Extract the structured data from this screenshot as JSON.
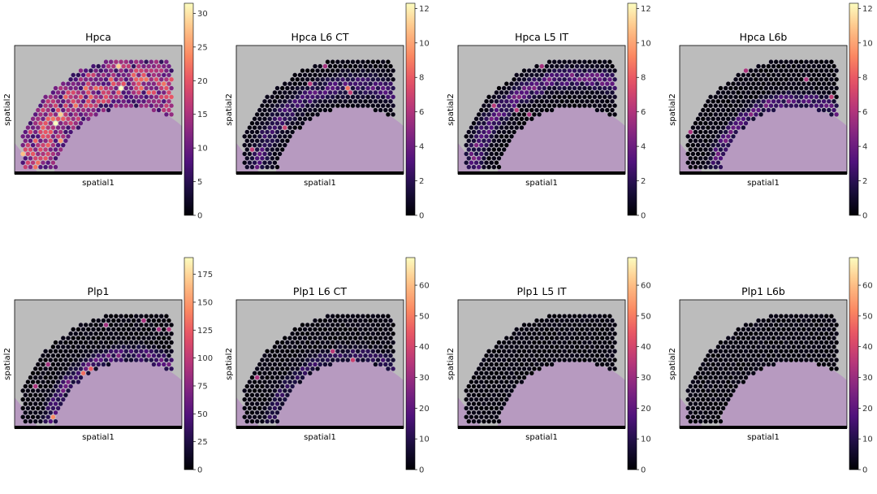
{
  "colormap": "magma",
  "colors": {
    "tissue_background": "#bcbcbc",
    "tissue_stain": "#b79ac0",
    "spot_outline": "#cfc6d8",
    "axis": "#000000"
  },
  "chart_data": [
    {
      "type": "heatmap",
      "title": "Hpca",
      "xlabel": "spatial1",
      "ylabel": "spatial2",
      "colorbar": {
        "vmin": 0,
        "vmax": 31.5,
        "ticks": [
          0,
          5,
          10,
          15,
          20,
          25,
          30
        ]
      },
      "level": 0.55,
      "band": "wide"
    },
    {
      "type": "heatmap",
      "title": "Hpca L6 CT",
      "xlabel": "spatial1",
      "ylabel": "spatial2",
      "colorbar": {
        "vmin": 0,
        "vmax": 12.3,
        "ticks": [
          0,
          2,
          4,
          6,
          8,
          10,
          12
        ]
      },
      "level": 0.22,
      "band": "mid"
    },
    {
      "type": "heatmap",
      "title": "Hpca L5 IT",
      "xlabel": "spatial1",
      "ylabel": "spatial2",
      "colorbar": {
        "vmin": 0,
        "vmax": 12.3,
        "ticks": [
          0,
          2,
          4,
          6,
          8,
          10,
          12
        ]
      },
      "level": 0.3,
      "band": "upper"
    },
    {
      "type": "heatmap",
      "title": "Hpca L6b",
      "xlabel": "spatial1",
      "ylabel": "spatial2",
      "colorbar": {
        "vmin": 0,
        "vmax": 12.3,
        "ticks": [
          0,
          2,
          4,
          6,
          8,
          10,
          12
        ]
      },
      "level": 0.28,
      "band": "inner"
    },
    {
      "type": "heatmap",
      "title": "Plp1",
      "xlabel": "spatial1",
      "ylabel": "spatial2",
      "colorbar": {
        "vmin": 0,
        "vmax": 190,
        "ticks": [
          0,
          25,
          50,
          75,
          100,
          125,
          150,
          175
        ]
      },
      "level": 0.28,
      "band": "inner"
    },
    {
      "type": "heatmap",
      "title": "Plp1 L6 CT",
      "xlabel": "spatial1",
      "ylabel": "spatial2",
      "colorbar": {
        "vmin": 0,
        "vmax": 69,
        "ticks": [
          0,
          10,
          20,
          30,
          40,
          50,
          60
        ]
      },
      "level": 0.16,
      "band": "inner"
    },
    {
      "type": "heatmap",
      "title": "Plp1 L5 IT",
      "xlabel": "spatial1",
      "ylabel": "spatial2",
      "colorbar": {
        "vmin": 0,
        "vmax": 69,
        "ticks": [
          0,
          10,
          20,
          30,
          40,
          50,
          60
        ]
      },
      "level": 0.03,
      "band": "none"
    },
    {
      "type": "heatmap",
      "title": "Plp1 L6b",
      "xlabel": "spatial1",
      "ylabel": "spatial2",
      "colorbar": {
        "vmin": 0,
        "vmax": 69,
        "ticks": [
          0,
          10,
          20,
          30,
          40,
          50,
          60
        ]
      },
      "level": 0.03,
      "band": "none"
    }
  ]
}
